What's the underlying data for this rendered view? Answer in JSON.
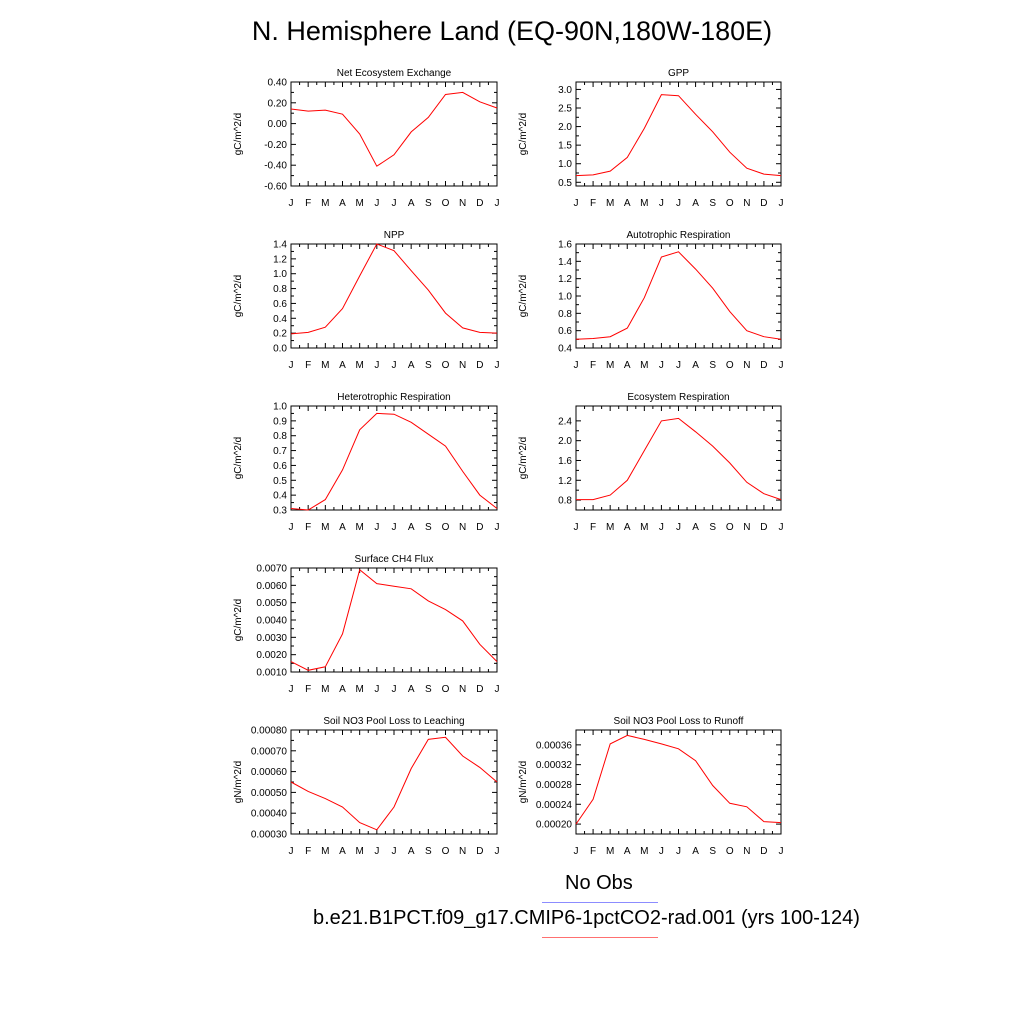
{
  "title": "N. Hemisphere Land (EQ-90N,180W-180E)",
  "legend": {
    "obs_label": "No Obs",
    "obs_color": "#8c8cff",
    "model_label": "b.e21.B1PCT.f09_g17.CMIP6-1pctCO2-rad.001 (yrs 100-124)",
    "model_color": "#ff0000"
  },
  "chart_data": [
    {
      "type": "line",
      "title": "Net Ecosystem Exchange",
      "ylabel": "gC/m^2/d",
      "categories": [
        "J",
        "F",
        "M",
        "A",
        "M",
        "J",
        "J",
        "A",
        "S",
        "O",
        "N",
        "D",
        "J"
      ],
      "ylim": [
        -0.6,
        0.4
      ],
      "yticks": [
        -0.6,
        -0.4,
        -0.2,
        0.0,
        0.2,
        0.4
      ],
      "ytick_labels": [
        "-0.60",
        "-0.40",
        "-0.20",
        "0.00",
        "0.20",
        "0.40"
      ],
      "series": [
        {
          "values": [
            0.14,
            0.12,
            0.13,
            0.09,
            -0.1,
            -0.41,
            -0.3,
            -0.08,
            0.06,
            0.28,
            0.3,
            0.21,
            0.15
          ],
          "color": "#ff0000"
        }
      ]
    },
    {
      "type": "line",
      "title": "GPP",
      "ylabel": "gC/m^2/d",
      "categories": [
        "J",
        "F",
        "M",
        "A",
        "M",
        "J",
        "J",
        "A",
        "S",
        "O",
        "N",
        "D",
        "J"
      ],
      "ylim": [
        0.4,
        3.2
      ],
      "yticks": [
        0.5,
        1.0,
        1.5,
        2.0,
        2.5,
        3.0
      ],
      "ytick_labels": [
        "0.5",
        "1.0",
        "1.5",
        "2.0",
        "2.5",
        "3.0"
      ],
      "series": [
        {
          "values": [
            0.68,
            0.7,
            0.8,
            1.17,
            1.95,
            2.86,
            2.83,
            2.33,
            1.86,
            1.31,
            0.88,
            0.72,
            0.68
          ],
          "color": "#ff0000"
        }
      ]
    },
    {
      "type": "line",
      "title": "NPP",
      "ylabel": "gC/m^2/d",
      "categories": [
        "J",
        "F",
        "M",
        "A",
        "M",
        "J",
        "J",
        "A",
        "S",
        "O",
        "N",
        "D",
        "J"
      ],
      "ylim": [
        0.0,
        1.4
      ],
      "yticks": [
        0.0,
        0.2,
        0.4,
        0.6,
        0.8,
        1.0,
        1.2,
        1.4
      ],
      "ytick_labels": [
        "0.0",
        "0.2",
        "0.4",
        "0.6",
        "0.8",
        "1.0",
        "1.2",
        "1.4"
      ],
      "series": [
        {
          "values": [
            0.19,
            0.21,
            0.28,
            0.53,
            0.97,
            1.4,
            1.31,
            1.04,
            0.78,
            0.47,
            0.27,
            0.21,
            0.2
          ],
          "color": "#ff0000"
        }
      ]
    },
    {
      "type": "line",
      "title": "Autotrophic Respiration",
      "ylabel": "gC/m^2/d",
      "categories": [
        "J",
        "F",
        "M",
        "A",
        "M",
        "J",
        "J",
        "A",
        "S",
        "O",
        "N",
        "D",
        "J"
      ],
      "ylim": [
        0.4,
        1.6
      ],
      "yticks": [
        0.4,
        0.6,
        0.8,
        1.0,
        1.2,
        1.4,
        1.6
      ],
      "ytick_labels": [
        "0.4",
        "0.6",
        "0.8",
        "1.0",
        "1.2",
        "1.4",
        "1.6"
      ],
      "series": [
        {
          "values": [
            0.5,
            0.51,
            0.53,
            0.63,
            0.98,
            1.45,
            1.51,
            1.31,
            1.09,
            0.82,
            0.6,
            0.53,
            0.5
          ],
          "color": "#ff0000"
        }
      ]
    },
    {
      "type": "line",
      "title": "Heterotrophic Respiration",
      "ylabel": "gC/m^2/d",
      "categories": [
        "J",
        "F",
        "M",
        "A",
        "M",
        "J",
        "J",
        "A",
        "S",
        "O",
        "N",
        "D",
        "J"
      ],
      "ylim": [
        0.3,
        1.0
      ],
      "yticks": [
        0.3,
        0.4,
        0.5,
        0.6,
        0.7,
        0.8,
        0.9,
        1.0
      ],
      "ytick_labels": [
        "0.3",
        "0.4",
        "0.5",
        "0.6",
        "0.7",
        "0.8",
        "0.9",
        "1.0"
      ],
      "series": [
        {
          "values": [
            0.31,
            0.3,
            0.37,
            0.57,
            0.84,
            0.95,
            0.945,
            0.89,
            0.81,
            0.73,
            0.56,
            0.4,
            0.31
          ],
          "color": "#ff0000"
        }
      ]
    },
    {
      "type": "line",
      "title": "Ecosystem Respiration",
      "ylabel": "gC/m^2/d",
      "categories": [
        "J",
        "F",
        "M",
        "A",
        "M",
        "J",
        "J",
        "A",
        "S",
        "O",
        "N",
        "D",
        "J"
      ],
      "ylim": [
        0.6,
        2.7
      ],
      "yticks": [
        0.8,
        1.2,
        1.6,
        2.0,
        2.4
      ],
      "ytick_labels": [
        "0.8",
        "1.2",
        "1.6",
        "2.0",
        "2.4"
      ],
      "series": [
        {
          "values": [
            0.81,
            0.81,
            0.9,
            1.2,
            1.8,
            2.4,
            2.45,
            2.18,
            1.89,
            1.55,
            1.16,
            0.93,
            0.81
          ],
          "color": "#ff0000"
        }
      ]
    },
    {
      "type": "line",
      "title": "Surface CH4 Flux",
      "ylabel": "gC/m^2/d",
      "categories": [
        "J",
        "F",
        "M",
        "A",
        "M",
        "J",
        "J",
        "A",
        "S",
        "O",
        "N",
        "D",
        "J"
      ],
      "ylim": [
        0.001,
        0.007
      ],
      "yticks": [
        0.001,
        0.002,
        0.003,
        0.004,
        0.005,
        0.006,
        0.007
      ],
      "ytick_labels": [
        "0.0010",
        "0.0020",
        "0.0030",
        "0.0040",
        "0.0050",
        "0.0060",
        "0.0070"
      ],
      "series": [
        {
          "values": [
            0.0016,
            0.0011,
            0.0013,
            0.0032,
            0.0069,
            0.0061,
            0.00595,
            0.0058,
            0.0051,
            0.0046,
            0.00395,
            0.0026,
            0.0016
          ],
          "color": "#ff0000"
        }
      ]
    },
    {
      "type": "line",
      "title": "Soil NO3 Pool Loss to Leaching",
      "ylabel": "gN/m^2/d",
      "categories": [
        "J",
        "F",
        "M",
        "A",
        "M",
        "J",
        "J",
        "A",
        "S",
        "O",
        "N",
        "D",
        "J"
      ],
      "ylim": [
        0.0003,
        0.0008
      ],
      "yticks": [
        0.0003,
        0.0004,
        0.0005,
        0.0006,
        0.0007,
        0.0008
      ],
      "ytick_labels": [
        "0.00030",
        "0.00040",
        "0.00050",
        "0.00060",
        "0.00070",
        "0.00080"
      ],
      "series": [
        {
          "values": [
            0.00055,
            0.000505,
            0.00047,
            0.00043,
            0.000355,
            0.00032,
            0.00043,
            0.000615,
            0.000755,
            0.000765,
            0.000675,
            0.00062,
            0.00055
          ],
          "color": "#ff0000"
        }
      ]
    },
    {
      "type": "line",
      "title": "Soil NO3 Pool Loss to Runoff",
      "ylabel": "gN/m^2/d",
      "categories": [
        "J",
        "F",
        "M",
        "A",
        "M",
        "J",
        "J",
        "A",
        "S",
        "O",
        "N",
        "D",
        "J"
      ],
      "ylim": [
        0.00018,
        0.00039
      ],
      "yticks": [
        0.0002,
        0.00024,
        0.00028,
        0.00032,
        0.00036
      ],
      "ytick_labels": [
        "0.00020",
        "0.00024",
        "0.00028",
        "0.00032",
        "0.00036"
      ],
      "series": [
        {
          "values": [
            0.0002,
            0.00025,
            0.000362,
            0.000379,
            0.000371,
            0.000362,
            0.000352,
            0.000328,
            0.000278,
            0.000242,
            0.000235,
            0.000205,
            0.000203
          ],
          "color": "#ff0000"
        }
      ]
    }
  ]
}
